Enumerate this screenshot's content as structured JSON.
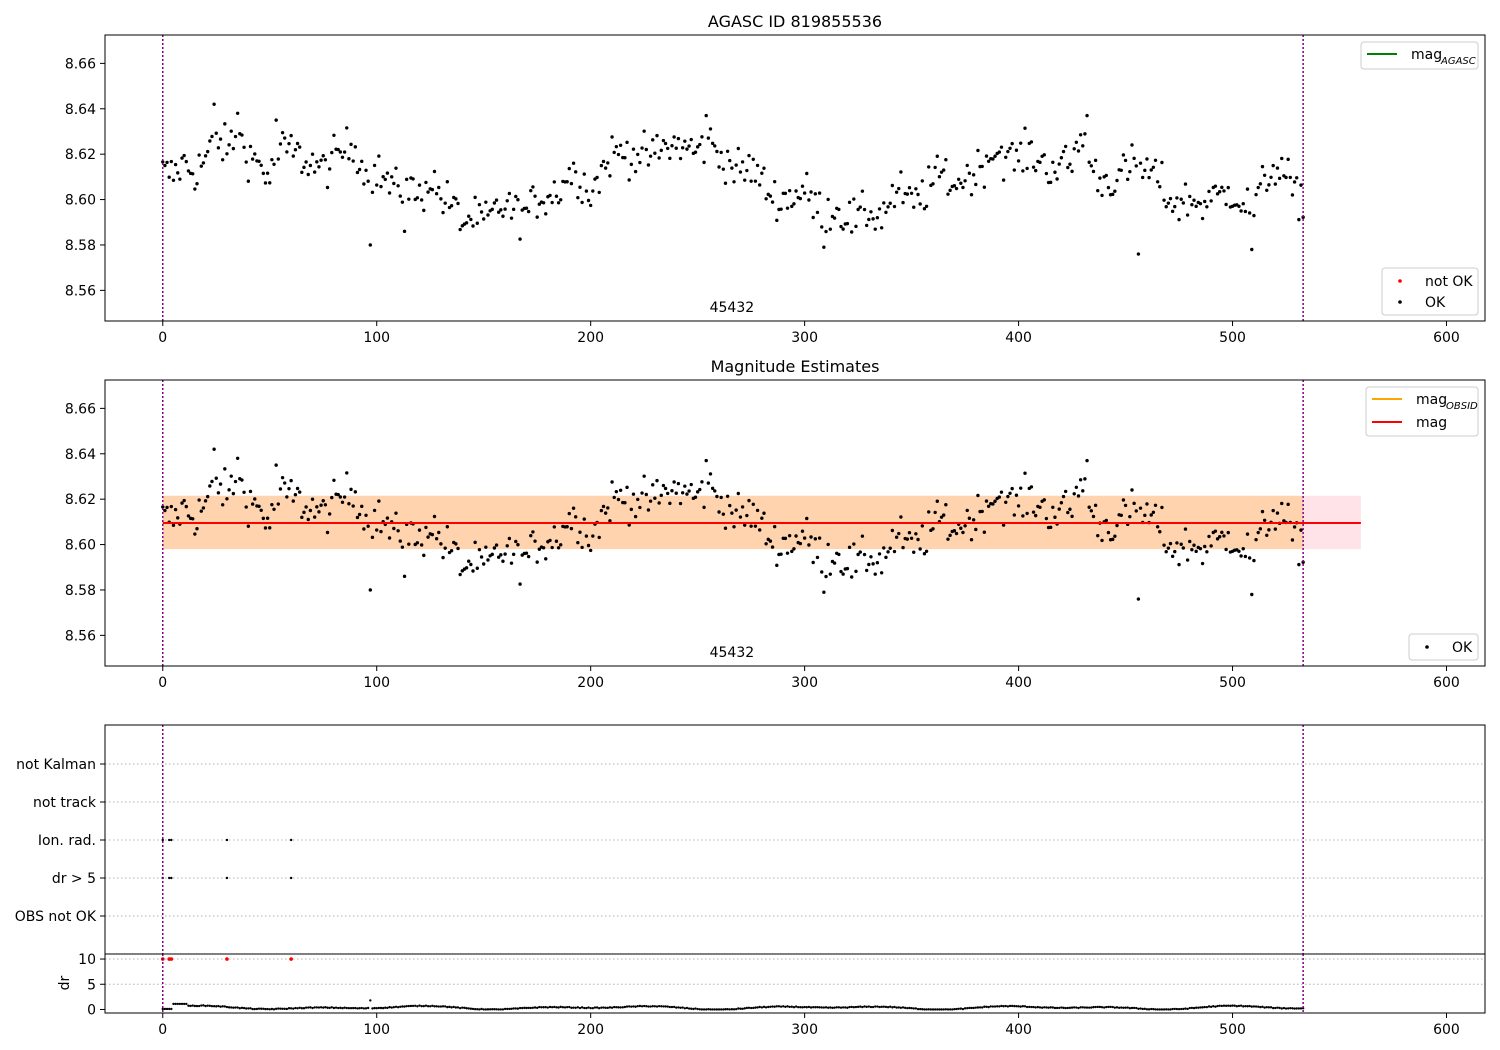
{
  "chart_data": [
    {
      "type": "scatter",
      "title": "AGASC ID 819855536",
      "xlim": [
        -27,
        618
      ],
      "ylim": [
        8.5465,
        8.6725
      ],
      "xticks": [
        0,
        100,
        200,
        300,
        400,
        500,
        600
      ],
      "yticks": [
        8.56,
        8.58,
        8.6,
        8.62,
        8.64,
        8.66
      ],
      "vlines": [
        0,
        533
      ],
      "annotation": {
        "text": "45432",
        "x": 266
      },
      "legend_lines": [
        {
          "label": "mag",
          "sub": "AGASC",
          "color": "#008000"
        }
      ],
      "legend_markers": [
        {
          "label": "not OK",
          "color": "#ff0000"
        },
        {
          "label": "OK",
          "color": "#000000"
        }
      ],
      "series": [
        {
          "name": "OK",
          "color": "#000000",
          "anchors": [
            [
              0,
              8.612
            ],
            [
              5,
              8.611
            ],
            [
              10,
              8.616
            ],
            [
              15,
              8.612
            ],
            [
              20,
              8.618
            ],
            [
              25,
              8.627
            ],
            [
              30,
              8.622
            ],
            [
              35,
              8.628
            ],
            [
              40,
              8.62
            ],
            [
              45,
              8.616
            ],
            [
              50,
              8.609
            ],
            [
              55,
              8.622
            ],
            [
              60,
              8.622
            ],
            [
              65,
              8.618
            ],
            [
              70,
              8.616
            ],
            [
              75,
              8.613
            ],
            [
              80,
              8.618
            ],
            [
              85,
              8.622
            ],
            [
              90,
              8.624
            ],
            [
              95,
              8.61
            ],
            [
              100,
              8.612
            ],
            [
              105,
              8.608
            ],
            [
              110,
              8.603
            ],
            [
              115,
              8.606
            ],
            [
              120,
              8.6
            ],
            [
              125,
              8.61
            ],
            [
              130,
              8.601
            ],
            [
              135,
              8.598
            ],
            [
              140,
              8.59
            ],
            [
              145,
              8.592
            ],
            [
              150,
              8.59
            ],
            [
              155,
              8.594
            ],
            [
              160,
              8.598
            ],
            [
              165,
              8.594
            ],
            [
              170,
              8.594
            ],
            [
              175,
              8.6
            ],
            [
              180,
              8.602
            ],
            [
              185,
              8.604
            ],
            [
              190,
              8.612
            ],
            [
              195,
              8.61
            ],
            [
              200,
              8.603
            ],
            [
              205,
              8.612
            ],
            [
              210,
              8.62
            ],
            [
              215,
              8.621
            ],
            [
              220,
              8.62
            ],
            [
              225,
              8.619
            ],
            [
              230,
              8.62
            ],
            [
              235,
              8.623
            ],
            [
              240,
              8.624
            ],
            [
              245,
              8.623
            ],
            [
              250,
              8.621
            ],
            [
              255,
              8.626
            ],
            [
              260,
              8.62
            ],
            [
              265,
              8.616
            ],
            [
              270,
              8.612
            ],
            [
              275,
              8.614
            ],
            [
              280,
              8.608
            ],
            [
              285,
              8.601
            ],
            [
              290,
              8.6
            ],
            [
              295,
              8.602
            ],
            [
              300,
              8.604
            ],
            [
              305,
              8.597
            ],
            [
              310,
              8.594
            ],
            [
              315,
              8.596
            ],
            [
              320,
              8.592
            ],
            [
              325,
              8.591
            ],
            [
              330,
              8.595
            ],
            [
              335,
              8.592
            ],
            [
              340,
              8.6
            ],
            [
              345,
              8.603
            ],
            [
              350,
              8.598
            ],
            [
              355,
              8.602
            ],
            [
              360,
              8.608
            ],
            [
              365,
              8.612
            ],
            [
              370,
              8.606
            ],
            [
              375,
              8.61
            ],
            [
              380,
              8.612
            ],
            [
              385,
              8.618
            ],
            [
              390,
              8.622
            ],
            [
              395,
              8.618
            ],
            [
              400,
              8.618
            ],
            [
              405,
              8.621
            ],
            [
              410,
              8.617
            ],
            [
              415,
              8.614
            ],
            [
              420,
              8.615
            ],
            [
              425,
              8.616
            ],
            [
              430,
              8.63
            ],
            [
              435,
              8.612
            ],
            [
              440,
              8.608
            ],
            [
              445,
              8.609
            ],
            [
              450,
              8.612
            ],
            [
              455,
              8.616
            ],
            [
              460,
              8.612
            ],
            [
              465,
              8.61
            ],
            [
              470,
              8.6
            ],
            [
              475,
              8.598
            ],
            [
              480,
              8.6
            ],
            [
              485,
              8.598
            ],
            [
              490,
              8.6
            ],
            [
              495,
              8.602
            ],
            [
              500,
              8.604
            ],
            [
              505,
              8.598
            ],
            [
              510,
              8.596
            ],
            [
              515,
              8.608
            ],
            [
              520,
              8.615
            ],
            [
              525,
              8.61
            ],
            [
              530,
              8.6
            ],
            [
              533,
              8.601
            ]
          ],
          "noise": 0.0045,
          "outliers": [
            [
              97,
              8.58
            ],
            [
              113,
              8.586
            ],
            [
              309,
              8.579
            ],
            [
              456,
              8.576
            ],
            [
              509,
              8.578
            ],
            [
              24,
              8.642
            ],
            [
              35,
              8.638
            ],
            [
              254,
              8.637
            ],
            [
              432,
              8.637
            ],
            [
              53,
              8.635
            ]
          ]
        }
      ]
    },
    {
      "type": "scatter",
      "title": "Magnitude Estimates",
      "xlim": [
        -27,
        618
      ],
      "ylim": [
        8.5465,
        8.6725
      ],
      "xticks": [
        0,
        100,
        200,
        300,
        400,
        500,
        600
      ],
      "yticks": [
        8.56,
        8.58,
        8.6,
        8.62,
        8.64,
        8.66
      ],
      "vlines": [
        0,
        533
      ],
      "annotation": {
        "text": "45432",
        "x": 266
      },
      "mag_line": {
        "y": 8.6095,
        "x": [
          0,
          560
        ],
        "color": "#ff0000"
      },
      "bands": [
        {
          "x": [
            0,
            560
          ],
          "y": [
            8.598,
            8.6215
          ],
          "color": "#ffc0cb",
          "opacity": 0.45
        },
        {
          "x": [
            0,
            533
          ],
          "y": [
            8.598,
            8.6215
          ],
          "color": "#ffa500",
          "opacity": 0.25
        }
      ],
      "legend_lines": [
        {
          "label": "mag",
          "sub": "OBSID",
          "color": "#ffa500"
        },
        {
          "label": "mag",
          "sub": "",
          "color": "#ff0000"
        }
      ],
      "legend_markers": [
        {
          "label": "OK",
          "color": "#000000"
        }
      ]
    },
    {
      "type": "scatter",
      "xlim": [
        -27,
        618
      ],
      "categories": [
        "not Kalman",
        "not track",
        "Ion. rad.",
        "dr > 5",
        "OBS not OK"
      ],
      "vlines": [
        0,
        533
      ],
      "flags": {
        "Ion. rad.": [
          0,
          3,
          4,
          30,
          60
        ],
        "dr > 5": [
          0,
          3,
          4,
          30,
          60
        ]
      }
    },
    {
      "type": "scatter",
      "xlim": [
        -27,
        618
      ],
      "ylim": [
        -0.7,
        11
      ],
      "ylabel": "dr",
      "xticks": [
        0,
        100,
        200,
        300,
        400,
        500,
        600
      ],
      "yticks": [
        0,
        5,
        10
      ],
      "vlines": [
        0,
        533
      ],
      "clipped": {
        "y": 10,
        "x": [
          0,
          3,
          4,
          30,
          60
        ],
        "color": "#ff0000"
      },
      "series": [
        {
          "name": "dr",
          "color": "#000000",
          "baseline": 0.35,
          "amplitude": 0.4,
          "spike": [
            97,
            1.8
          ]
        }
      ]
    }
  ]
}
